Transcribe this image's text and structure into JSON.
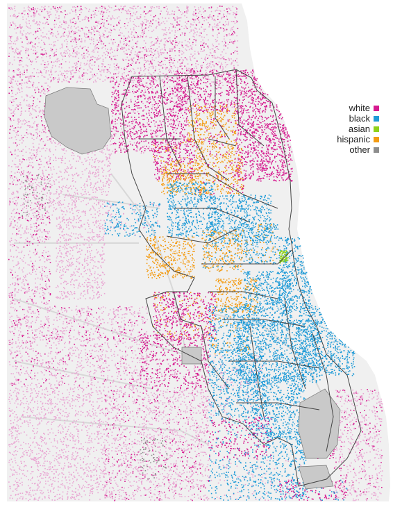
{
  "legend": {
    "items": [
      {
        "label": "white",
        "color": "#d6198f"
      },
      {
        "label": "black",
        "color": "#1f9bd7"
      },
      {
        "label": "asian",
        "color": "#8fd11a"
      },
      {
        "label": "hispanic",
        "color": "#f39b12"
      },
      {
        "label": "other",
        "color": "#8d8d8d"
      }
    ]
  },
  "map": {
    "land_color": "#f0f0f0",
    "water_color": "#ffffff",
    "airport_color": "#c9c9c9",
    "boundary_color": "#444444",
    "road_color": "#d8d8d8"
  }
}
